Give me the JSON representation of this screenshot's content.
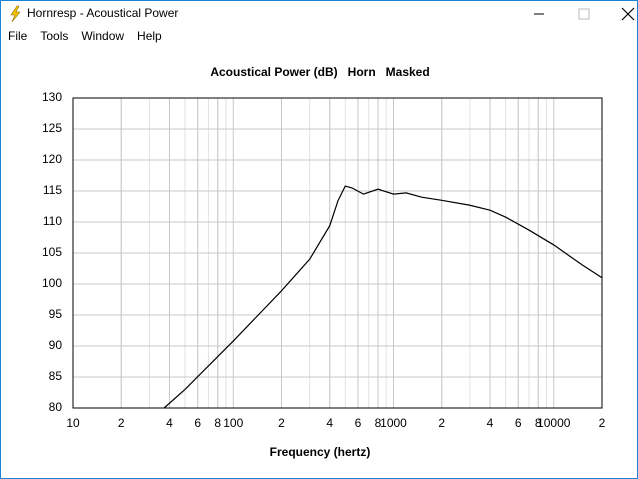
{
  "window": {
    "title": "Hornresp - Acoustical Power",
    "menu": [
      "File",
      "Tools",
      "Window",
      "Help"
    ]
  },
  "chart_data": {
    "type": "line",
    "title": "Acoustical Power (dB)   Horn   Masked",
    "x_label": "Frequency (hertz)",
    "log_x": true,
    "grid": true,
    "minor_grid": true,
    "xlim": [
      10,
      20000
    ],
    "xticks": [
      10,
      {
        "value": 20,
        "label": "2"
      },
      {
        "value": 40,
        "label": "4"
      },
      {
        "value": 60,
        "label": "6"
      },
      {
        "value": 80,
        "label": "8"
      },
      100,
      {
        "value": 200,
        "label": "2"
      },
      {
        "value": 400,
        "label": "4"
      },
      {
        "value": 600,
        "label": "6"
      },
      {
        "value": 800,
        "label": "8"
      },
      1000,
      {
        "value": 2000,
        "label": "2"
      },
      {
        "value": 4000,
        "label": "4"
      },
      {
        "value": 6000,
        "label": "6"
      },
      {
        "value": 8000,
        "label": "8"
      },
      10000,
      {
        "value": 20000,
        "label": "2"
      }
    ],
    "ylim": [
      80,
      130
    ],
    "yticks": [
      80,
      85,
      90,
      95,
      100,
      105,
      110,
      115,
      120,
      125,
      130
    ],
    "x": [
      37,
      50,
      100,
      200,
      300,
      400,
      450,
      500,
      550,
      650,
      800,
      1000,
      1200,
      1500,
      2000,
      3000,
      4000,
      5000,
      7000,
      10000,
      15000,
      20000
    ],
    "series": [
      {
        "color": "#000000",
        "values": [
          80,
          83,
          90.8,
          98.9,
          104,
          109.4,
          113.4,
          115.8,
          115.5,
          114.5,
          115.3,
          114.5,
          114.7,
          114,
          113.5,
          112.7,
          111.9,
          110.8,
          108.7,
          106.3,
          103.1,
          101
        ]
      }
    ]
  }
}
